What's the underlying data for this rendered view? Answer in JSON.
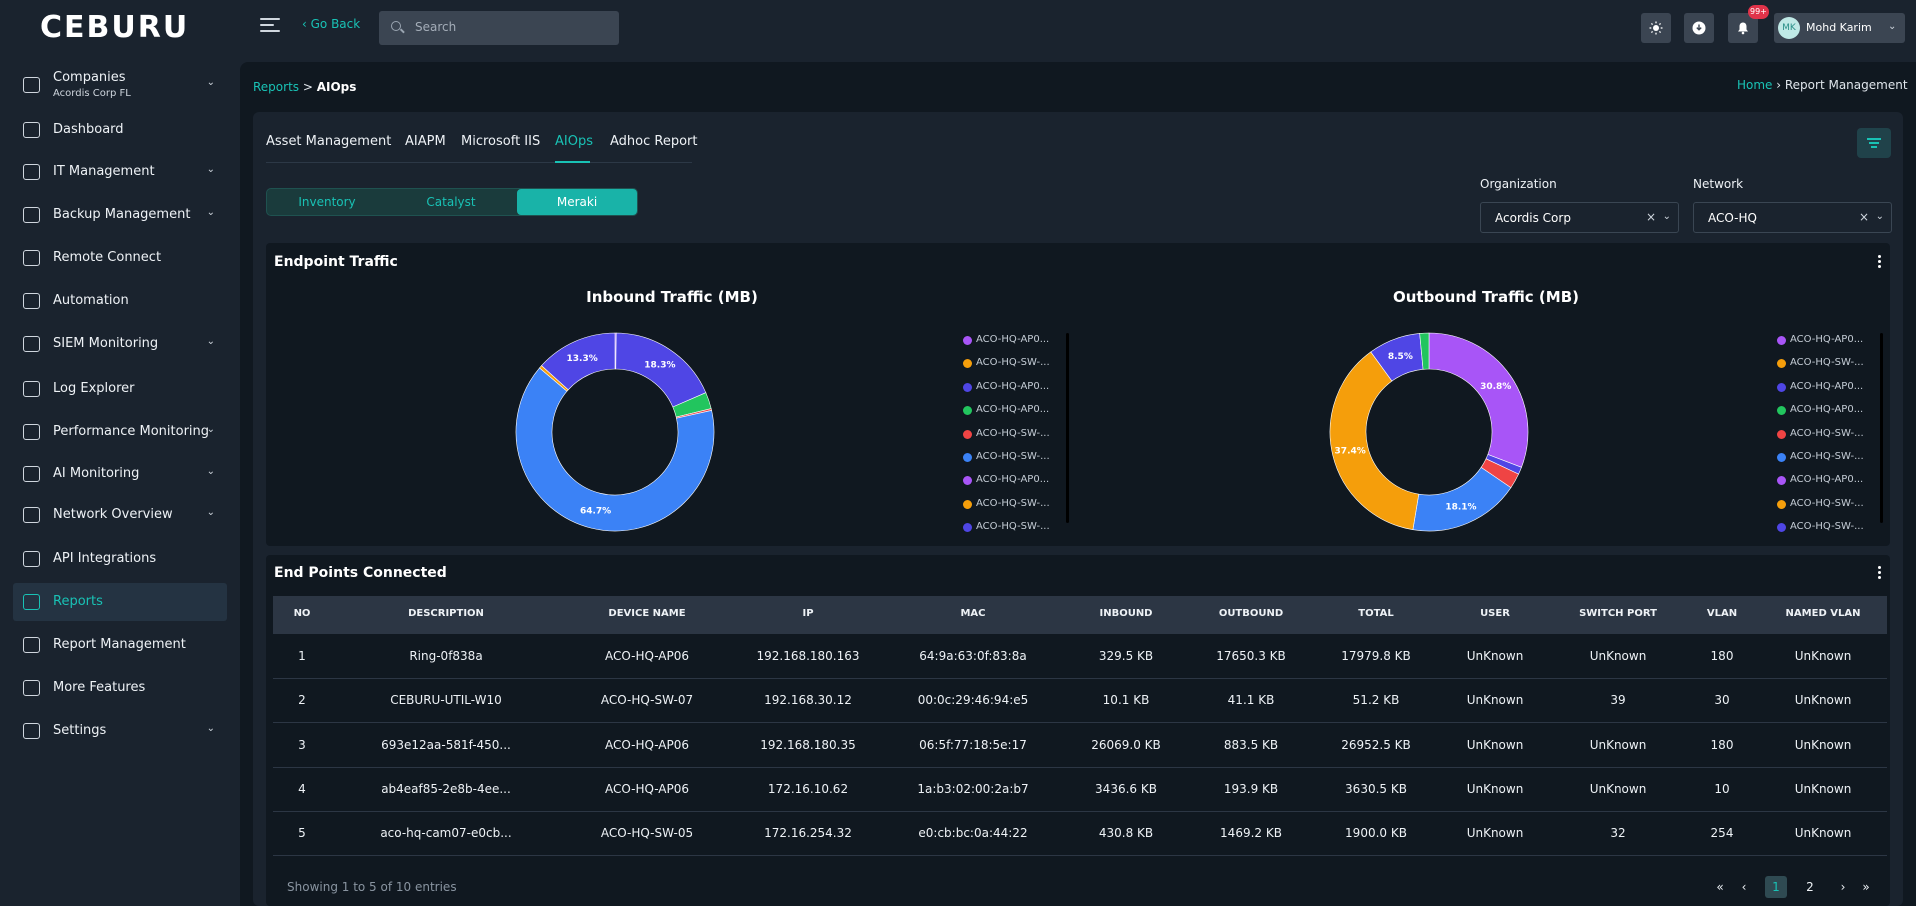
{
  "brand": {
    "logo": "CEBURU"
  },
  "topbar": {
    "go_back": "‹ Go Back",
    "search_placeholder": "Search",
    "notif_badge": "99+",
    "user_initials": "MK",
    "user_name": "Mohd Karim"
  },
  "sidebar": {
    "items": [
      {
        "label": "Companies",
        "sub": "Acordis Corp FL",
        "chevron": true,
        "icon": "building-icon"
      },
      {
        "label": "Dashboard",
        "chevron": false,
        "icon": "dashboard-icon"
      },
      {
        "label": "IT Management",
        "chevron": true,
        "icon": "truck-icon"
      },
      {
        "label": "Backup Management",
        "chevron": true,
        "icon": "backup-icon"
      },
      {
        "label": "Remote Connect",
        "chevron": false,
        "icon": "remote-icon"
      },
      {
        "label": "Automation",
        "chevron": false,
        "icon": "gear-icon"
      },
      {
        "label": "SIEM Monitoring",
        "chevron": true,
        "icon": "siem-icon"
      },
      {
        "label": "Log Explorer",
        "chevron": false,
        "icon": "log-icon"
      },
      {
        "label": "Performance Monitoring",
        "chevron": true,
        "icon": "monitor-icon"
      },
      {
        "label": "AI Monitoring",
        "chevron": true,
        "icon": "ai-icon"
      },
      {
        "label": "Network Overview",
        "chevron": true,
        "icon": "network-icon"
      },
      {
        "label": "API Integrations",
        "chevron": false,
        "icon": "api-icon"
      },
      {
        "label": "Reports",
        "chevron": false,
        "icon": "report-icon",
        "active": true
      },
      {
        "label": "Report Management",
        "chevron": false,
        "icon": "report-mgmt-icon"
      },
      {
        "label": "More Features",
        "chevron": false,
        "icon": "grid-icon"
      },
      {
        "label": "Settings",
        "chevron": true,
        "icon": "settings-icon"
      }
    ]
  },
  "breadcrumb": {
    "parent": "Reports",
    "sep": " > ",
    "current": "AIOps"
  },
  "right_breadcrumb": {
    "home": "Home",
    "sep": " › ",
    "current": "Report Management"
  },
  "tabs": [
    "Asset Management",
    "AIAPM",
    "Microsoft IIS",
    "AIOps",
    "Adhoc Report"
  ],
  "active_tab": "AIOps",
  "segments": [
    "Inventory",
    "Catalyst",
    "Meraki"
  ],
  "active_segment": "Meraki",
  "filters": {
    "organization_label": "Organization",
    "organization_value": "Acordis Corp",
    "network_label": "Network",
    "network_value": "ACO-HQ",
    "clear_glyph": "×",
    "chevron_glyph": "⌄"
  },
  "colors": {
    "accent": "#19c2b5",
    "purple": "#a855f7",
    "orange": "#f59e0b",
    "indigo": "#4f46e5",
    "green": "#22c55e",
    "red": "#ef4444",
    "blue": "#3b82f6"
  },
  "endpoint_traffic": {
    "title": "Endpoint Traffic",
    "legend_names": [
      "ACO-HQ-AP0...",
      "ACO-HQ-SW-...",
      "ACO-HQ-AP0...",
      "ACO-HQ-AP0...",
      "ACO-HQ-SW-...",
      "ACO-HQ-SW-...",
      "ACO-HQ-AP0...",
      "ACO-HQ-SW-...",
      "ACO-HQ-SW-..."
    ],
    "legend_colors": [
      "#a855f7",
      "#f59e0b",
      "#4f46e5",
      "#22c55e",
      "#ef4444",
      "#3b82f6",
      "#a855f7",
      "#f59e0b",
      "#4f46e5"
    ]
  },
  "chart_data": [
    {
      "type": "pie",
      "title": "Inbound Traffic (MB)",
      "slices": [
        {
          "color": "#a855f7",
          "percent": 0.2
        },
        {
          "color": "#4f46e5",
          "percent": 18.3,
          "label": "18.3%"
        },
        {
          "color": "#22c55e",
          "percent": 2.7
        },
        {
          "color": "#ef4444",
          "percent": 0.3
        },
        {
          "color": "#3b82f6",
          "percent": 64.7,
          "label": "64.7%"
        },
        {
          "color": "#f59e0b",
          "percent": 0.5
        },
        {
          "color": "#4f46e5",
          "percent": 13.3,
          "label": "13.3%"
        }
      ]
    },
    {
      "type": "pie",
      "title": "Outbound Traffic (MB)",
      "slices": [
        {
          "color": "#a855f7",
          "percent": 30.8,
          "label": "30.8%"
        },
        {
          "color": "#4f46e5",
          "percent": 1.2
        },
        {
          "color": "#ef4444",
          "percent": 2.5
        },
        {
          "color": "#3b82f6",
          "percent": 18.1,
          "label": "18.1%"
        },
        {
          "color": "#f59e0b",
          "percent": 37.4,
          "label": "37.4%"
        },
        {
          "color": "#4f46e5",
          "percent": 8.5,
          "label": "8.5%"
        },
        {
          "color": "#22c55e",
          "percent": 1.5
        }
      ]
    }
  ],
  "endpoints": {
    "title": "End Points Connected",
    "columns": [
      "NO",
      "DESCRIPTION",
      "DEVICE NAME",
      "IP",
      "MAC",
      "INBOUND",
      "OUTBOUND",
      "TOTAL",
      "USER",
      "SWITCH PORT",
      "VLAN",
      "NAMED VLAN"
    ],
    "rows": [
      [
        "1",
        "Ring-0f838a",
        "ACO-HQ-AP06",
        "192.168.180.163",
        "64:9a:63:0f:83:8a",
        "329.5 KB",
        "17650.3 KB",
        "17979.8 KB",
        "UnKnown",
        "UnKnown",
        "180",
        "UnKnown"
      ],
      [
        "2",
        "CEBURU-UTIL-W10",
        "ACO-HQ-SW-07",
        "192.168.30.12",
        "00:0c:29:46:94:e5",
        "10.1 KB",
        "41.1 KB",
        "51.2 KB",
        "UnKnown",
        "39",
        "30",
        "UnKnown"
      ],
      [
        "3",
        "693e12aa-581f-450...",
        "ACO-HQ-AP06",
        "192.168.180.35",
        "06:5f:77:18:5e:17",
        "26069.0 KB",
        "883.5 KB",
        "26952.5 KB",
        "UnKnown",
        "UnKnown",
        "180",
        "UnKnown"
      ],
      [
        "4",
        "ab4eaf85-2e8b-4ee...",
        "ACO-HQ-AP06",
        "172.16.10.62",
        "1a:b3:02:00:2a:b7",
        "3436.6 KB",
        "193.9 KB",
        "3630.5 KB",
        "UnKnown",
        "UnKnown",
        "10",
        "UnKnown"
      ],
      [
        "5",
        "aco-hq-cam07-e0cb...",
        "ACO-HQ-SW-05",
        "172.16.254.32",
        "e0:cb:bc:0a:44:22",
        "430.8 KB",
        "1469.2 KB",
        "1900.0 KB",
        "UnKnown",
        "32",
        "254",
        "UnKnown"
      ]
    ],
    "showing": "Showing 1 to 5 of 10 entries",
    "pagination": [
      "«",
      "‹",
      "1",
      "2",
      "›",
      "»"
    ],
    "active_page": "1"
  }
}
